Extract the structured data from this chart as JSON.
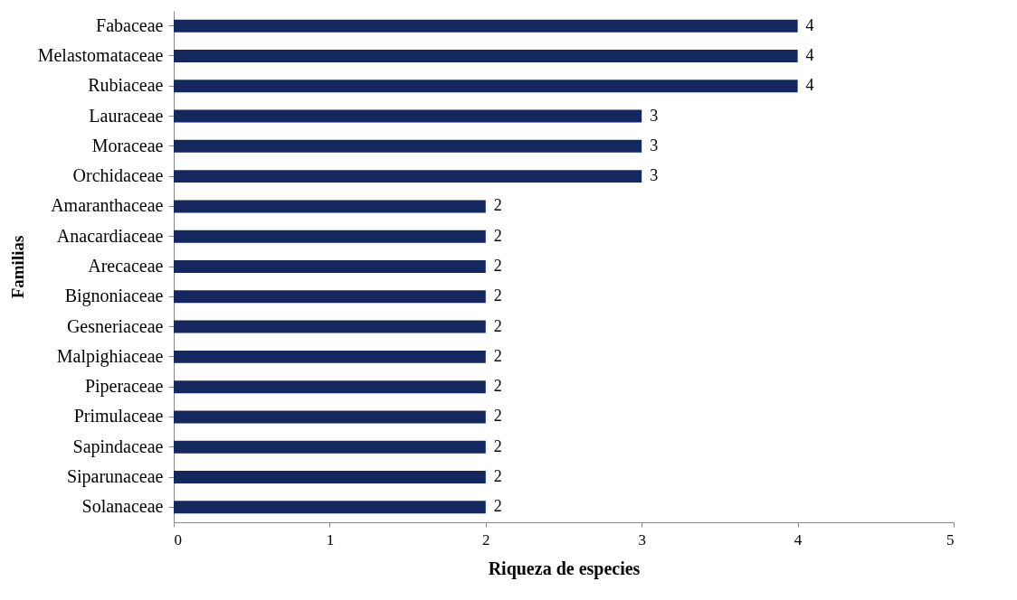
{
  "chart_data": {
    "type": "bar",
    "orientation": "horizontal",
    "xlabel": "Riqueza de especies",
    "ylabel": "Familias",
    "categories": [
      "Fabaceae",
      "Melastomataceae",
      "Rubiaceae",
      "Lauraceae",
      "Moraceae",
      "Orchidaceae",
      "Amaranthaceae",
      "Anacardiaceae",
      "Arecaceae",
      "Bignoniaceae",
      "Gesneriaceae",
      "Malpighiaceae",
      "Piperaceae",
      "Primulaceae",
      "Sapindaceae",
      "Siparunaceae",
      "Solanaceae"
    ],
    "values": [
      4,
      4,
      4,
      3,
      3,
      3,
      2,
      2,
      2,
      2,
      2,
      2,
      2,
      2,
      2,
      2,
      2
    ],
    "color": "#14285f",
    "xlim": [
      0,
      5
    ],
    "xticks": [
      0,
      1,
      2,
      3,
      4,
      5
    ],
    "data_labels": true
  }
}
